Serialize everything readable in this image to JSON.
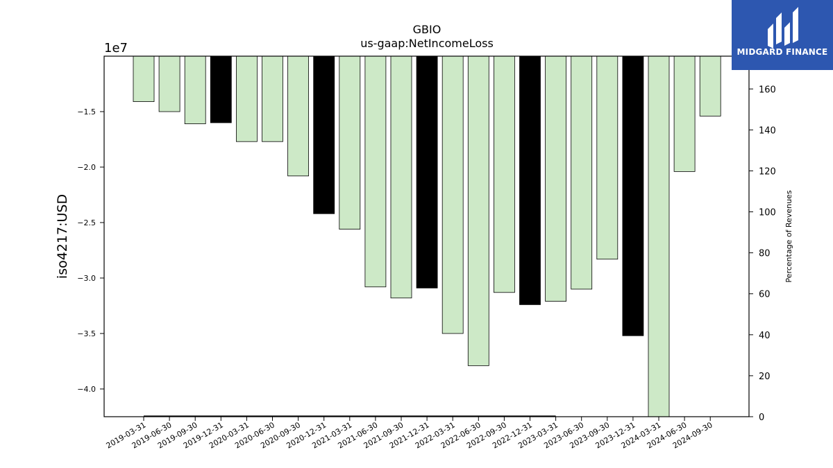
{
  "brand": {
    "name": "MIDGARD FINANCE",
    "color": "#2d57b0"
  },
  "chart_data": {
    "type": "bar",
    "title": "GBIO",
    "subtitle": "us-gaap:NetIncomeLoss",
    "ylabel": "iso4217:USD",
    "y_offset_label": "1e7",
    "ylim": [
      -42500000,
      -10000000
    ],
    "y_ticks": [
      -40000000,
      -35000000,
      -30000000,
      -25000000,
      -20000000,
      -15000000
    ],
    "y_tick_labels": [
      "−4.0",
      "−3.5",
      "−3.0",
      "−2.5",
      "−2.0",
      "−1.5"
    ],
    "y2label": "Percentage of Revenues",
    "y2lim": [
      0,
      176
    ],
    "y2_ticks": [
      0,
      20,
      40,
      60,
      80,
      100,
      120,
      140,
      160
    ],
    "categories": [
      "2019-03-31",
      "2019-06-30",
      "2019-09-30",
      "2019-12-31",
      "2020-03-31",
      "2020-06-30",
      "2020-09-30",
      "2020-12-31",
      "2021-03-31",
      "2021-06-30",
      "2021-09-30",
      "2021-12-31",
      "2022-03-31",
      "2022-06-30",
      "2022-09-30",
      "2022-12-31",
      "2023-03-31",
      "2023-06-30",
      "2023-09-30",
      "2023-12-31",
      "2024-03-31",
      "2024-06-30",
      "2024-09-30"
    ],
    "values": [
      -14100000,
      -15000000,
      -16100000,
      -16000000,
      -17700000,
      -17700000,
      -20800000,
      -24200000,
      -25600000,
      -30800000,
      -31800000,
      -30900000,
      -35000000,
      -37900000,
      -31300000,
      -32400000,
      -32100000,
      -31000000,
      -28300000,
      -35200000,
      -42800000,
      -20400000,
      -15400000
    ],
    "bar_colors": [
      "#cde9c7",
      "#cde9c7",
      "#cde9c7",
      "#000000",
      "#cde9c7",
      "#cde9c7",
      "#cde9c7",
      "#000000",
      "#cde9c7",
      "#cde9c7",
      "#cde9c7",
      "#000000",
      "#cde9c7",
      "#cde9c7",
      "#cde9c7",
      "#000000",
      "#cde9c7",
      "#cde9c7",
      "#cde9c7",
      "#000000",
      "#cde9c7",
      "#cde9c7",
      "#cde9c7"
    ],
    "percentage_line": {
      "x_range": [
        "2019-03-31",
        "2023-03-31"
      ],
      "values_range": [
        0.2,
        0.2
      ]
    },
    "grid": false
  }
}
